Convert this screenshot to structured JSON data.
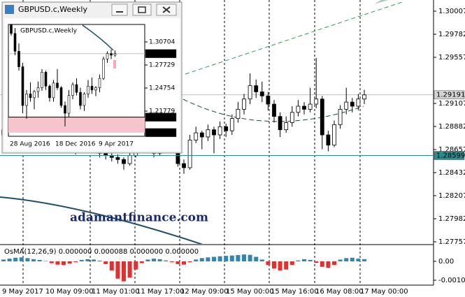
{
  "main": {
    "price_ticks": [
      1.30007,
      1.29782,
      1.29557,
      1.29107,
      1.28882,
      1.28657,
      1.28432,
      1.28207,
      1.27982,
      1.27757
    ],
    "current_price": 1.29191,
    "line_price": 1.28599,
    "time_labels": [
      "9 May 2017",
      "10 May 09:00",
      "11 May 01:00",
      "11 May 17:00",
      "12 May 09:00",
      "15 May 00:00",
      "15 May 16:00",
      "16 May 08:00",
      "17 May 00:00"
    ],
    "candles": [
      [
        1.288,
        1.2892,
        1.2876,
        1.2885
      ],
      [
        1.2885,
        1.2894,
        1.288,
        1.289
      ],
      [
        1.289,
        1.2896,
        1.2882,
        1.2888
      ],
      [
        1.2888,
        1.29,
        1.2884,
        1.2895
      ],
      [
        1.2895,
        1.2898,
        1.2886,
        1.2892
      ],
      [
        1.2892,
        1.2894,
        1.2876,
        1.288
      ],
      [
        1.288,
        1.2884,
        1.287,
        1.2875
      ],
      [
        1.2875,
        1.2878,
        1.2866,
        1.287
      ],
      [
        1.287,
        1.2882,
        1.2868,
        1.2878
      ],
      [
        1.2878,
        1.2886,
        1.2874,
        1.2882
      ],
      [
        1.2882,
        1.2884,
        1.2872,
        1.2876
      ],
      [
        1.2876,
        1.2878,
        1.2866,
        1.287
      ],
      [
        1.287,
        1.2872,
        1.2861,
        1.2865
      ],
      [
        1.2865,
        1.2872,
        1.2862,
        1.2868
      ],
      [
        1.2868,
        1.2876,
        1.2865,
        1.2872
      ],
      [
        1.2872,
        1.2874,
        1.2862,
        1.2866
      ],
      [
        1.2866,
        1.2868,
        1.2858,
        1.2862
      ],
      [
        1.2862,
        1.2865,
        1.2856,
        1.286
      ],
      [
        1.286,
        1.2863,
        1.2854,
        1.2858
      ],
      [
        1.2858,
        1.2861,
        1.2852,
        1.2856
      ],
      [
        1.2856,
        1.2858,
        1.2846,
        1.2852
      ],
      [
        1.2852,
        1.2864,
        1.285,
        1.286
      ],
      [
        1.286,
        1.2872,
        1.2858,
        1.2868
      ],
      [
        1.2868,
        1.2876,
        1.2864,
        1.2872
      ],
      [
        1.2872,
        1.2874,
        1.2862,
        1.2866
      ],
      [
        1.2866,
        1.2868,
        1.2858,
        1.2862
      ],
      [
        1.2862,
        1.2874,
        1.286,
        1.287
      ],
      [
        1.287,
        1.2878,
        1.2866,
        1.2874
      ],
      [
        1.2874,
        1.2876,
        1.2862,
        1.2866
      ],
      [
        1.2866,
        1.2868,
        1.2849,
        1.2852
      ],
      [
        1.2852,
        1.2856,
        1.2842,
        1.2848
      ],
      [
        1.2848,
        1.288,
        1.2846,
        1.2875
      ],
      [
        1.2875,
        1.2888,
        1.2872,
        1.2882
      ],
      [
        1.2882,
        1.2884,
        1.2866,
        1.2878
      ],
      [
        1.2878,
        1.289,
        1.2874,
        1.2885
      ],
      [
        1.2885,
        1.2888,
        1.2862,
        1.288
      ],
      [
        1.288,
        1.2893,
        1.2876,
        1.2888
      ],
      [
        1.2888,
        1.2891,
        1.2878,
        1.2884
      ],
      [
        1.2884,
        1.29,
        1.288,
        1.2896
      ],
      [
        1.2896,
        1.2912,
        1.2892,
        1.2905
      ],
      [
        1.2905,
        1.292,
        1.29,
        1.2915
      ],
      [
        1.2915,
        1.294,
        1.291,
        1.2928
      ],
      [
        1.2928,
        1.2934,
        1.2916,
        1.2922
      ],
      [
        1.2922,
        1.2932,
        1.2912,
        1.2918
      ],
      [
        1.2918,
        1.2922,
        1.2904,
        1.291
      ],
      [
        1.291,
        1.2914,
        1.2892,
        1.2898
      ],
      [
        1.2898,
        1.2902,
        1.2878,
        1.2885
      ],
      [
        1.2885,
        1.2898,
        1.2882,
        1.2892
      ],
      [
        1.2892,
        1.2908,
        1.2888,
        1.2902
      ],
      [
        1.2902,
        1.2914,
        1.2898,
        1.2908
      ],
      [
        1.2908,
        1.2912,
        1.29,
        1.2905
      ],
      [
        1.2905,
        1.2926,
        1.2902,
        1.291
      ],
      [
        1.291,
        1.2955,
        1.2906,
        1.2915
      ],
      [
        1.2915,
        1.2918,
        1.2866,
        1.288
      ],
      [
        1.288,
        1.2884,
        1.2864,
        1.287
      ],
      [
        1.287,
        1.2894,
        1.2868,
        1.289
      ],
      [
        1.289,
        1.2909,
        1.2886,
        1.2905
      ],
      [
        1.2905,
        1.2926,
        1.29,
        1.2912
      ],
      [
        1.2912,
        1.2916,
        1.2902,
        1.2908
      ],
      [
        1.2908,
        1.292,
        1.2904,
        1.2915
      ],
      [
        1.2915,
        1.2924,
        1.291,
        1.2919
      ]
    ]
  },
  "indicator": {
    "label": "OsMA(12,26,9) 0.000000 0.000088 0.000000 0.000000",
    "ticks": [
      {
        "value": 0,
        "label": "0.00"
      },
      -0.00104
    ],
    "values": [
      0.0001,
      0.00015,
      0.0002,
      0.00022,
      0.00018,
      0.00012,
      8e-05,
      2e-05,
      -0.0001,
      -0.00018,
      -0.0002,
      -0.00012,
      -4e-05,
      8e-05,
      0.00012,
      0.0001,
      4e-05,
      -0.00015,
      -0.0005,
      -0.00095,
      -0.0011,
      -0.0009,
      -0.00045,
      -0.0001,
      0.0001,
      0.00015,
      0.00012,
      5e-05,
      -4e-05,
      -0.00015,
      -0.00018,
      -5e-05,
      0.0001,
      0.00018,
      0.00022,
      0.00025,
      0.00028,
      0.0003,
      0.00032,
      0.00035,
      0.00038,
      0.00036,
      0.00025,
      0.0001,
      -0.0002,
      -0.0004,
      -0.0005,
      -0.00045,
      -0.0002,
      5e-05,
      0.00012,
      8e-05,
      -8e-05,
      -0.0003,
      -0.00035,
      -0.0002,
      0.0001,
      0.00018,
      0.0002,
      0.00015,
      0.00012
    ]
  },
  "inset": {
    "window_title": "GBPUSD.c,Weekly",
    "chart_label": "GBPUSD.c,Weekly",
    "price_ticks": [
      1.30704,
      1.27729,
      1.24754,
      1.21779
    ],
    "current_price": 1.29191,
    "zone": [
      {
        "value": 1.21,
        "label": "1.21000"
      },
      {
        "value": 1.19,
        "label": "1.19000"
      }
    ],
    "date_labels": [
      "28 Aug 2016",
      "18 Dec 2016",
      "9 Apr 2017"
    ],
    "candles": [
      [
        1.33,
        1.335,
        1.315,
        1.318
      ],
      [
        1.318,
        1.325,
        1.29,
        1.295
      ],
      [
        1.295,
        1.305,
        1.27,
        1.275
      ],
      [
        1.275,
        1.28,
        1.215,
        1.225
      ],
      [
        1.225,
        1.245,
        1.208,
        1.24
      ],
      [
        1.24,
        1.255,
        1.23,
        1.235
      ],
      [
        1.235,
        1.245,
        1.22,
        1.243
      ],
      [
        1.243,
        1.256,
        1.235,
        1.248
      ],
      [
        1.248,
        1.272,
        1.244,
        1.268
      ],
      [
        1.268,
        1.27,
        1.245,
        1.25
      ],
      [
        1.25,
        1.252,
        1.23,
        1.235
      ],
      [
        1.235,
        1.258,
        1.23,
        1.254
      ],
      [
        1.254,
        1.272,
        1.245,
        1.248
      ],
      [
        1.248,
        1.25,
        1.222,
        1.225
      ],
      [
        1.225,
        1.23,
        1.198,
        1.215
      ],
      [
        1.215,
        1.245,
        1.21,
        1.238
      ],
      [
        1.238,
        1.255,
        1.233,
        1.252
      ],
      [
        1.252,
        1.26,
        1.238,
        1.242
      ],
      [
        1.242,
        1.248,
        1.22,
        1.225
      ],
      [
        1.225,
        1.242,
        1.218,
        1.24
      ],
      [
        1.24,
        1.258,
        1.235,
        1.25
      ],
      [
        1.25,
        1.261,
        1.24,
        1.245
      ],
      [
        1.245,
        1.25,
        1.237,
        1.248
      ],
      [
        1.248,
        1.265,
        1.242,
        1.26
      ],
      [
        1.26,
        1.288,
        1.258,
        1.285
      ],
      [
        1.285,
        1.295,
        1.28,
        1.292
      ],
      [
        1.292,
        1.297,
        1.285,
        1.29
      ],
      [
        1.29,
        1.296,
        1.288,
        1.2919
      ]
    ]
  },
  "watermark": "adamantfinance.com"
}
